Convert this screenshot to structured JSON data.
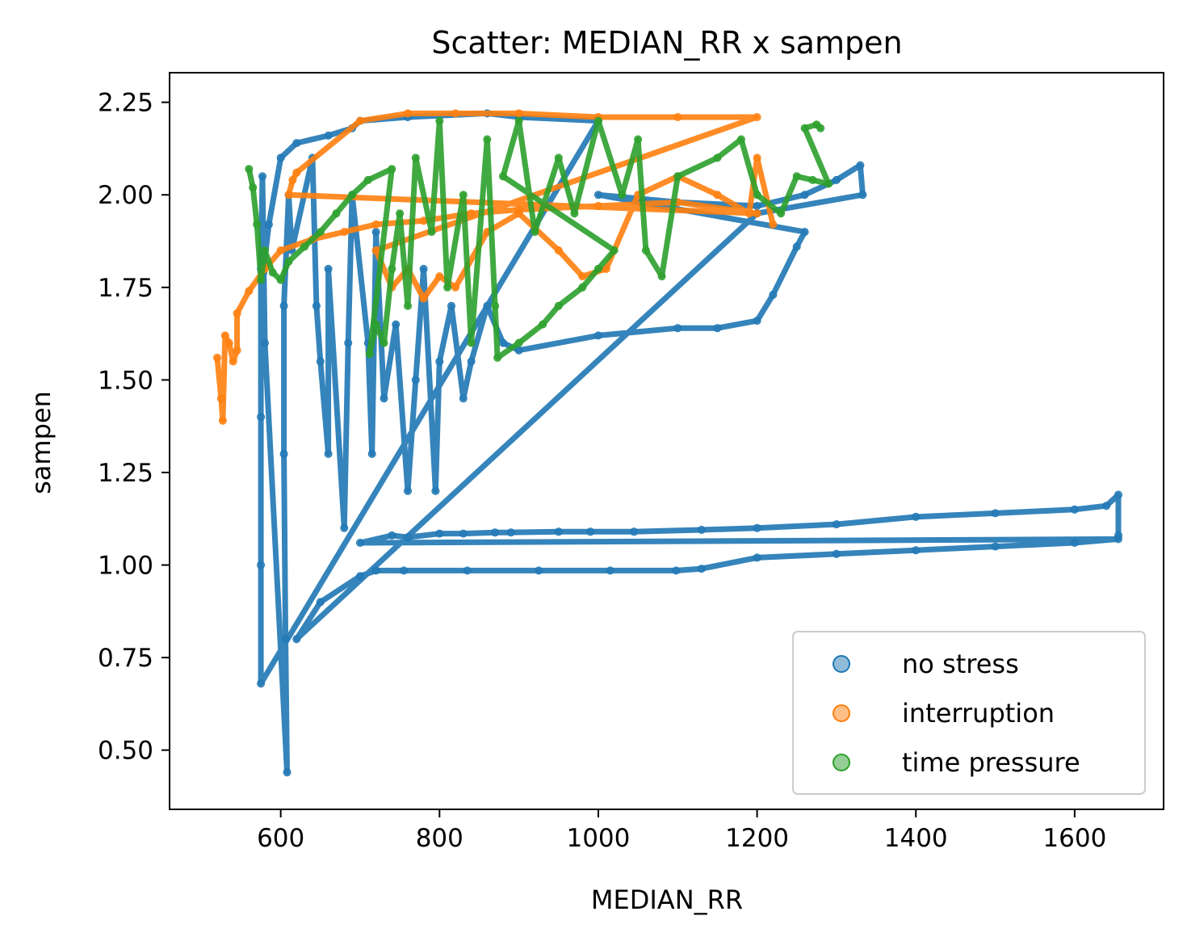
{
  "chart_data": {
    "type": "scatter",
    "title": "Scatter: MEDIAN_RR x sampen",
    "xlabel": "MEDIAN_RR",
    "ylabel": "sampen",
    "xlim": [
      460,
      1712
    ],
    "ylim": [
      0.34,
      2.33
    ],
    "xticks": [
      600,
      800,
      1000,
      1200,
      1400,
      1600
    ],
    "yticks": [
      0.5,
      0.75,
      1.0,
      1.25,
      1.5,
      1.75,
      2.0,
      2.25
    ],
    "xtick_labels": [
      "600",
      "800",
      "1000",
      "1200",
      "1400",
      "1600"
    ],
    "ytick_labels": [
      "0.50",
      "0.75",
      "1.00",
      "1.25",
      "1.50",
      "1.75",
      "2.00",
      "2.25"
    ],
    "legend_position": "lower-right",
    "grid": false,
    "series": [
      {
        "name": "no stress",
        "color": "#1f77b4",
        "points": [
          [
            578,
            1.79
          ],
          [
            585,
            1.92
          ],
          [
            600,
            2.1
          ],
          [
            620,
            2.14
          ],
          [
            660,
            2.16
          ],
          [
            690,
            2.18
          ],
          [
            700,
            2.2
          ],
          [
            760,
            2.21
          ],
          [
            860,
            2.22
          ],
          [
            900,
            2.21
          ],
          [
            1000,
            2.2
          ],
          [
            575,
            0.68
          ],
          [
            575,
            1.0
          ],
          [
            575,
            1.4
          ],
          [
            575,
            1.8
          ],
          [
            577,
            2.05
          ],
          [
            580,
            1.6
          ],
          [
            608,
            0.44
          ],
          [
            606,
            0.8
          ],
          [
            604,
            1.3
          ],
          [
            604,
            1.7
          ],
          [
            610,
            2.0
          ],
          [
            614,
            1.85
          ],
          [
            640,
            2.1
          ],
          [
            645,
            1.7
          ],
          [
            650,
            1.55
          ],
          [
            660,
            1.3
          ],
          [
            660,
            1.8
          ],
          [
            680,
            1.1
          ],
          [
            685,
            1.6
          ],
          [
            690,
            2.0
          ],
          [
            710,
            1.6
          ],
          [
            715,
            1.3
          ],
          [
            720,
            1.9
          ],
          [
            730,
            1.45
          ],
          [
            745,
            1.65
          ],
          [
            760,
            1.2
          ],
          [
            770,
            1.5
          ],
          [
            780,
            1.8
          ],
          [
            795,
            1.2
          ],
          [
            800,
            1.55
          ],
          [
            815,
            1.7
          ],
          [
            830,
            1.45
          ],
          [
            840,
            1.55
          ],
          [
            860,
            1.7
          ],
          [
            880,
            1.6
          ],
          [
            900,
            1.58
          ],
          [
            1000,
            1.62
          ],
          [
            1100,
            1.64
          ],
          [
            1150,
            1.64
          ],
          [
            1200,
            1.66
          ],
          [
            1220,
            1.73
          ],
          [
            1250,
            1.86
          ],
          [
            1260,
            1.9
          ],
          [
            1000,
            2.0
          ],
          [
            1100,
            1.98
          ],
          [
            1200,
            1.97
          ],
          [
            1260,
            2.0
          ],
          [
            1300,
            2.04
          ],
          [
            1330,
            2.08
          ],
          [
            1333,
            2.0
          ],
          [
            1200,
            1.95
          ],
          [
            620,
            0.8
          ],
          [
            650,
            0.9
          ],
          [
            700,
            0.97
          ],
          [
            720,
            0.985
          ],
          [
            755,
            0.985
          ],
          [
            835,
            0.985
          ],
          [
            925,
            0.985
          ],
          [
            1015,
            0.985
          ],
          [
            1098,
            0.985
          ],
          [
            1130,
            0.99
          ],
          [
            1200,
            1.02
          ],
          [
            1300,
            1.03
          ],
          [
            1400,
            1.04
          ],
          [
            1500,
            1.05
          ],
          [
            1600,
            1.06
          ],
          [
            1655,
            1.07
          ],
          [
            700,
            1.06
          ],
          [
            740,
            1.08
          ],
          [
            760,
            1.075
          ],
          [
            800,
            1.085
          ],
          [
            830,
            1.085
          ],
          [
            870,
            1.088
          ],
          [
            890,
            1.088
          ],
          [
            950,
            1.09
          ],
          [
            990,
            1.09
          ],
          [
            1045,
            1.09
          ],
          [
            1130,
            1.095
          ],
          [
            1200,
            1.1
          ],
          [
            1300,
            1.11
          ],
          [
            1400,
            1.13
          ],
          [
            1500,
            1.14
          ],
          [
            1600,
            1.15
          ],
          [
            1640,
            1.16
          ],
          [
            1655,
            1.19
          ],
          [
            1655,
            1.08
          ]
        ]
      },
      {
        "name": "interruption",
        "color": "#ff7f0e",
        "points": [
          [
            520,
            1.56
          ],
          [
            525,
            1.45
          ],
          [
            527,
            1.39
          ],
          [
            530,
            1.62
          ],
          [
            535,
            1.6
          ],
          [
            540,
            1.55
          ],
          [
            545,
            1.58
          ],
          [
            545,
            1.68
          ],
          [
            560,
            1.74
          ],
          [
            580,
            1.8
          ],
          [
            600,
            1.85
          ],
          [
            640,
            1.88
          ],
          [
            680,
            1.9
          ],
          [
            720,
            1.92
          ],
          [
            780,
            1.93
          ],
          [
            840,
            1.95
          ],
          [
            900,
            1.96
          ],
          [
            1000,
            1.97
          ],
          [
            1100,
            1.98
          ],
          [
            1200,
            1.95
          ],
          [
            610,
            2.0
          ],
          [
            615,
            2.04
          ],
          [
            620,
            2.06
          ],
          [
            700,
            2.2
          ],
          [
            760,
            2.22
          ],
          [
            820,
            2.22
          ],
          [
            900,
            2.22
          ],
          [
            1000,
            2.21
          ],
          [
            1100,
            2.21
          ],
          [
            1200,
            2.21
          ],
          [
            720,
            1.85
          ],
          [
            740,
            1.75
          ],
          [
            760,
            1.8
          ],
          [
            780,
            1.72
          ],
          [
            800,
            1.78
          ],
          [
            820,
            1.75
          ],
          [
            860,
            1.9
          ],
          [
            900,
            1.95
          ],
          [
            950,
            1.85
          ],
          [
            980,
            1.78
          ],
          [
            1010,
            1.8
          ],
          [
            1050,
            2.0
          ],
          [
            1100,
            2.05
          ],
          [
            1150,
            2.0
          ],
          [
            1190,
            1.95
          ],
          [
            1200,
            2.1
          ],
          [
            1220,
            1.92
          ]
        ]
      },
      {
        "name": "time pressure",
        "color": "#2ca02c",
        "points": [
          [
            560,
            2.07
          ],
          [
            565,
            2.02
          ],
          [
            570,
            1.92
          ],
          [
            575,
            1.77
          ],
          [
            580,
            1.85
          ],
          [
            590,
            1.79
          ],
          [
            600,
            1.77
          ],
          [
            610,
            1.82
          ],
          [
            630,
            1.86
          ],
          [
            650,
            1.9
          ],
          [
            670,
            1.95
          ],
          [
            690,
            2.0
          ],
          [
            710,
            2.04
          ],
          [
            740,
            2.07
          ],
          [
            712,
            1.57
          ],
          [
            720,
            1.65
          ],
          [
            730,
            1.6
          ],
          [
            740,
            1.8
          ],
          [
            750,
            1.95
          ],
          [
            760,
            1.7
          ],
          [
            770,
            2.1
          ],
          [
            790,
            1.9
          ],
          [
            800,
            2.2
          ],
          [
            810,
            1.75
          ],
          [
            830,
            2.0
          ],
          [
            840,
            1.6
          ],
          [
            860,
            2.15
          ],
          [
            870,
            1.7
          ],
          [
            873,
            1.56
          ],
          [
            900,
            1.6
          ],
          [
            930,
            1.65
          ],
          [
            950,
            1.7
          ],
          [
            980,
            1.75
          ],
          [
            1000,
            1.8
          ],
          [
            1020,
            1.85
          ],
          [
            880,
            2.05
          ],
          [
            900,
            2.2
          ],
          [
            920,
            1.9
          ],
          [
            950,
            2.1
          ],
          [
            970,
            1.95
          ],
          [
            1000,
            2.2
          ],
          [
            1030,
            2.0
          ],
          [
            1050,
            2.15
          ],
          [
            1060,
            1.85
          ],
          [
            1080,
            1.78
          ],
          [
            1100,
            2.05
          ],
          [
            1150,
            2.1
          ],
          [
            1180,
            2.15
          ],
          [
            1200,
            2.0
          ],
          [
            1230,
            1.95
          ],
          [
            1250,
            2.05
          ],
          [
            1270,
            2.04
          ],
          [
            1290,
            2.03
          ],
          [
            1260,
            2.18
          ],
          [
            1275,
            2.19
          ],
          [
            1280,
            2.18
          ]
        ]
      }
    ]
  }
}
